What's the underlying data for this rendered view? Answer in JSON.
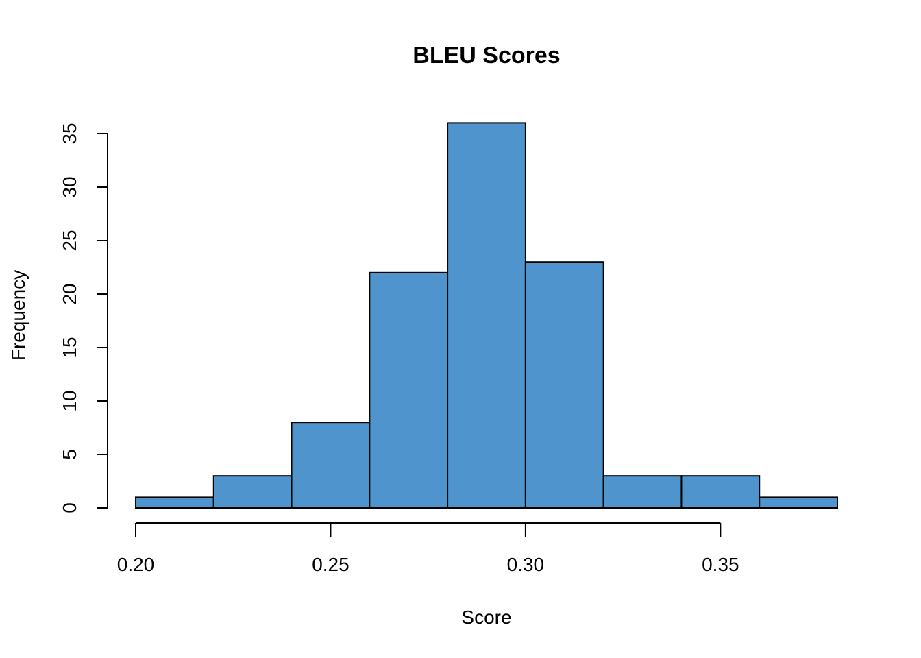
{
  "chart_data": {
    "type": "bar",
    "title": "BLEU Scores",
    "xlabel": "Score",
    "ylabel": "Frequency",
    "bins": [
      {
        "start": 0.2,
        "end": 0.22,
        "count": 1
      },
      {
        "start": 0.22,
        "end": 0.24,
        "count": 3
      },
      {
        "start": 0.24,
        "end": 0.26,
        "count": 8
      },
      {
        "start": 0.26,
        "end": 0.28,
        "count": 22
      },
      {
        "start": 0.28,
        "end": 0.3,
        "count": 36
      },
      {
        "start": 0.3,
        "end": 0.32,
        "count": 23
      },
      {
        "start": 0.32,
        "end": 0.34,
        "count": 3
      },
      {
        "start": 0.34,
        "end": 0.36,
        "count": 3
      },
      {
        "start": 0.36,
        "end": 0.38,
        "count": 1
      }
    ],
    "x_ticks": [
      "0.20",
      "0.25",
      "0.30",
      "0.35"
    ],
    "y_ticks": [
      "0",
      "5",
      "10",
      "15",
      "20",
      "25",
      "30",
      "35"
    ],
    "xlim": [
      0.2,
      0.38
    ],
    "ylim": [
      0,
      36
    ],
    "bar_color": "#4f94cd",
    "grid": false,
    "legend": "none"
  }
}
